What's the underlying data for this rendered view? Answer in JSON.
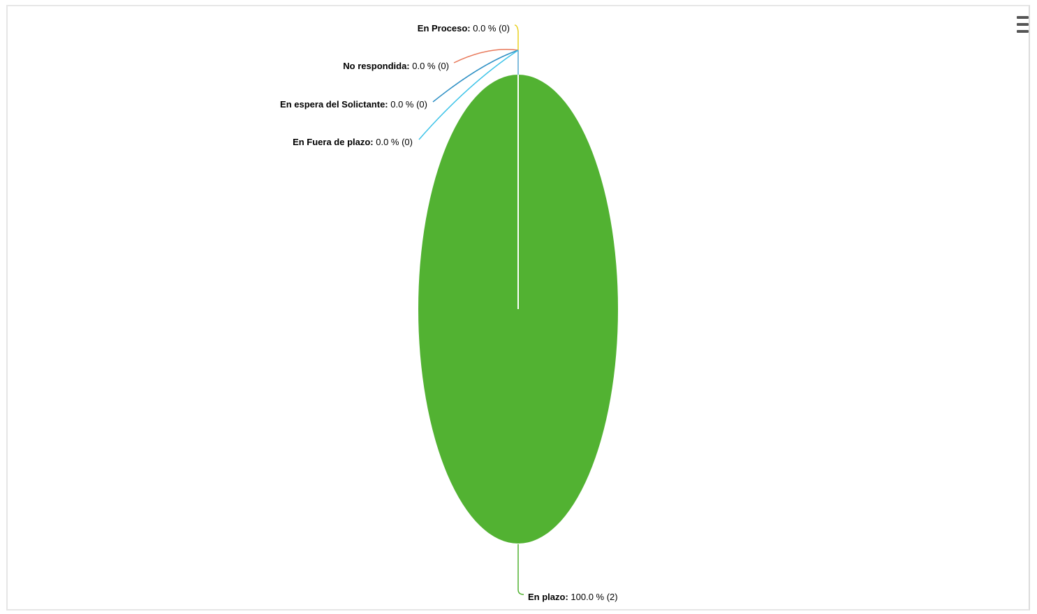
{
  "chart_data": {
    "type": "pie",
    "title": "",
    "slices": [
      {
        "name": "En plazo",
        "percent_label": "100.0 %",
        "count_label": "(2)",
        "value": 2,
        "color": "#52b232"
      },
      {
        "name": "En Proceso",
        "percent_label": "0.0 %",
        "count_label": "(0)",
        "value": 0,
        "color": "#e8d020"
      },
      {
        "name": "No respondida",
        "percent_label": "0.0 %",
        "count_label": "(0)",
        "value": 0,
        "color": "#e8795a"
      },
      {
        "name": "En espera del Solictante",
        "percent_label": "0.0 %",
        "count_label": "(0)",
        "value": 0,
        "color": "#2d8fc4"
      },
      {
        "name": "En Fuera de plazo",
        "percent_label": "0.0 %",
        "count_label": "(0)",
        "value": 0,
        "color": "#3cc3e8"
      }
    ]
  },
  "toolbar": {
    "menu_icon": "hamburger-menu-icon"
  }
}
